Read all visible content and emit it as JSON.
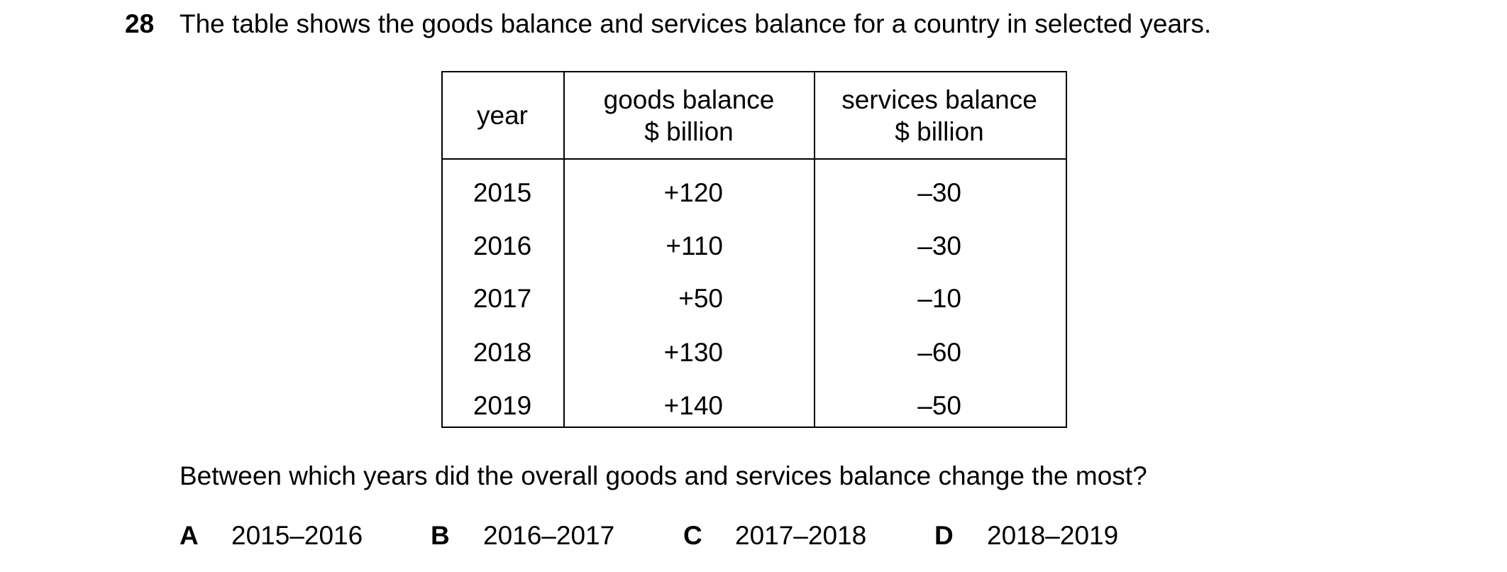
{
  "question": {
    "number": "28",
    "stem": "The table shows the goods balance and services balance for a country in selected years.",
    "table": {
      "headers": [
        [
          "year"
        ],
        [
          "goods balance",
          "$ billion"
        ],
        [
          "services balance",
          "$ billion"
        ]
      ],
      "rows": [
        [
          "2015",
          "+120",
          "–30"
        ],
        [
          "2016",
          "+110",
          "–30"
        ],
        [
          "2017",
          "+50",
          "–10"
        ],
        [
          "2018",
          "+130",
          "–60"
        ],
        [
          "2019",
          "+140",
          "–50"
        ]
      ]
    },
    "prompt": "Between which years did the overall goods and services balance change the most?",
    "options": [
      {
        "letter": "A",
        "text": "2015–2016"
      },
      {
        "letter": "B",
        "text": "2016–2017"
      },
      {
        "letter": "C",
        "text": "2017–2018"
      },
      {
        "letter": "D",
        "text": "2018–2019"
      }
    ]
  }
}
